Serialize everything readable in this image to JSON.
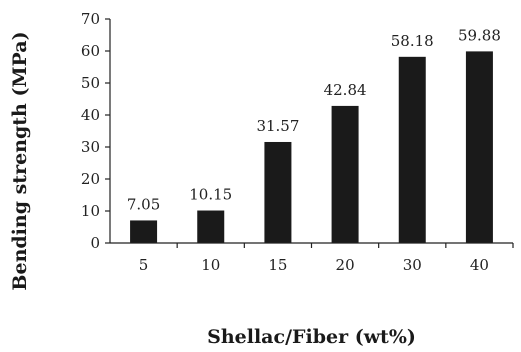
{
  "chart_data": {
    "type": "bar",
    "categories": [
      "5",
      "10",
      "15",
      "20",
      "30",
      "40"
    ],
    "values": [
      7.05,
      10.15,
      31.57,
      42.84,
      58.18,
      59.88
    ],
    "data_labels": [
      "7.05",
      "10.15",
      "31.57",
      "42.84",
      "58.18",
      "59.88"
    ],
    "xlabel": "Shellac/Fiber (wt%)",
    "ylabel": "Bending strength (MPa)",
    "ylim": [
      0,
      70
    ],
    "yticks": [
      "0",
      "10",
      "20",
      "30",
      "40",
      "50",
      "60",
      "70"
    ],
    "grid": false,
    "legend": "none",
    "bar_color": "#1a1a1a",
    "axis_color": "#222222"
  }
}
